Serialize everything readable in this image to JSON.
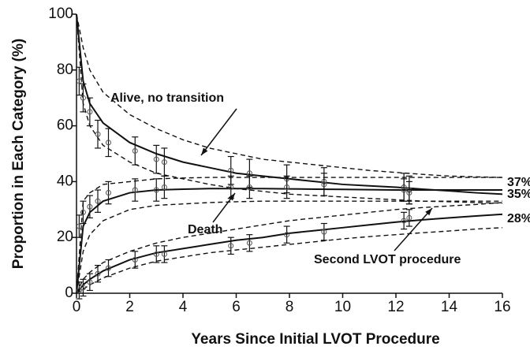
{
  "chart_data": {
    "type": "line",
    "x_label": "Years Since Initial LVOT Procedure",
    "y_label": "Proportion in Each Category (%)",
    "xlim": [
      0,
      16
    ],
    "xticks": [
      0,
      2,
      4,
      6,
      8,
      10,
      12,
      14,
      16
    ],
    "ylim": [
      0,
      100
    ],
    "yticks": [
      0,
      20,
      40,
      60,
      80,
      100
    ],
    "x": [
      0,
      0.25,
      0.5,
      1,
      2,
      3,
      4,
      5,
      6,
      7,
      8,
      9,
      10,
      11,
      12,
      13,
      14,
      15,
      16
    ],
    "color": "#111111",
    "series": [
      {
        "values": [
          100,
          76,
          68,
          61,
          54,
          50,
          47,
          45,
          43,
          42,
          41,
          40,
          39,
          38.5,
          38,
          37.3,
          36.7,
          36,
          35.5
        ],
        "upper": [
          100,
          88,
          80,
          72,
          64,
          59,
          55,
          52,
          50,
          48,
          47,
          46,
          45,
          44,
          43.3,
          42.6,
          42,
          41.7,
          41.5
        ],
        "lower": [
          100,
          68,
          60,
          53,
          47,
          43,
          41,
          39,
          37.5,
          36.5,
          35.5,
          35,
          34.5,
          34,
          33.5,
          33,
          32.8,
          32.5,
          32.3
        ],
        "points_x": [
          0.1,
          0.25,
          0.5,
          0.8,
          1.2,
          2.2,
          3,
          3.3,
          5.8,
          6.5,
          7.9,
          9.3,
          12.3,
          12.5
        ],
        "points": [
          76,
          70,
          65,
          57,
          54,
          51,
          48,
          47,
          44,
          43,
          41,
          40,
          38,
          37
        ],
        "errors": [
          5,
          5,
          5,
          5,
          5,
          5,
          5,
          5,
          5,
          5,
          5,
          5,
          5,
          5
        ]
      },
      {
        "values": [
          0,
          24,
          29,
          33,
          36,
          37,
          37.3,
          37.5,
          37.5,
          37.5,
          37.4,
          37.3,
          37.2,
          37.1,
          37,
          37,
          37,
          37,
          37
        ],
        "upper": [
          0,
          33,
          36,
          39,
          40,
          41,
          41.3,
          41.5,
          41.5,
          41.5,
          41.5,
          41.5,
          41.5,
          41.5,
          41.5,
          41.5,
          41.5,
          41.5,
          41.5
        ],
        "lower": [
          0,
          15,
          21,
          26,
          30,
          31.5,
          32,
          32.5,
          32.8,
          33,
          33,
          33,
          33,
          33,
          33,
          33,
          33,
          33,
          33
        ],
        "points_x": [
          0.1,
          0.25,
          0.5,
          0.8,
          1.2,
          2.2,
          3,
          3.3,
          5.8,
          6.5,
          7.9,
          9.3,
          12.3,
          12.5
        ],
        "points": [
          24,
          29,
          31,
          33,
          36,
          37,
          37,
          38,
          38,
          38,
          38,
          39,
          37,
          36
        ],
        "errors": [
          4,
          4,
          4,
          4,
          4,
          4,
          4,
          4,
          4,
          4,
          4,
          4,
          4,
          4
        ]
      },
      {
        "values": [
          0,
          3,
          5,
          8,
          12,
          14.5,
          16,
          17.5,
          19,
          20,
          21.5,
          22.5,
          23.5,
          24.5,
          25.5,
          26.3,
          27,
          27.7,
          28.3
        ],
        "upper": [
          0,
          5,
          7.5,
          11,
          15,
          18,
          20,
          21.5,
          23,
          24.5,
          26,
          27,
          28,
          29,
          30,
          30.7,
          31.3,
          31.8,
          32.5
        ],
        "lower": [
          0,
          1.5,
          3,
          5.5,
          9,
          11.5,
          13,
          14.5,
          15.5,
          16.5,
          17.5,
          18.5,
          19.5,
          20.3,
          21,
          21.7,
          22.3,
          23,
          23.5
        ],
        "points_x": [
          0.1,
          0.25,
          0.5,
          0.8,
          1.2,
          2.2,
          3,
          3.3,
          5.8,
          6.5,
          7.9,
          9.3,
          12.3,
          12.5
        ],
        "points": [
          1,
          2,
          4,
          7,
          9,
          12,
          14,
          14,
          17,
          18,
          21,
          22,
          26,
          27
        ],
        "errors": [
          3,
          3,
          3,
          3,
          3,
          3,
          3,
          3,
          3,
          3,
          3,
          3,
          3,
          3
        ]
      }
    ],
    "annotations": [
      "Alive, no transition",
      "Death",
      "Second LVOT procedure",
      "37%",
      "35%",
      "28%"
    ]
  }
}
